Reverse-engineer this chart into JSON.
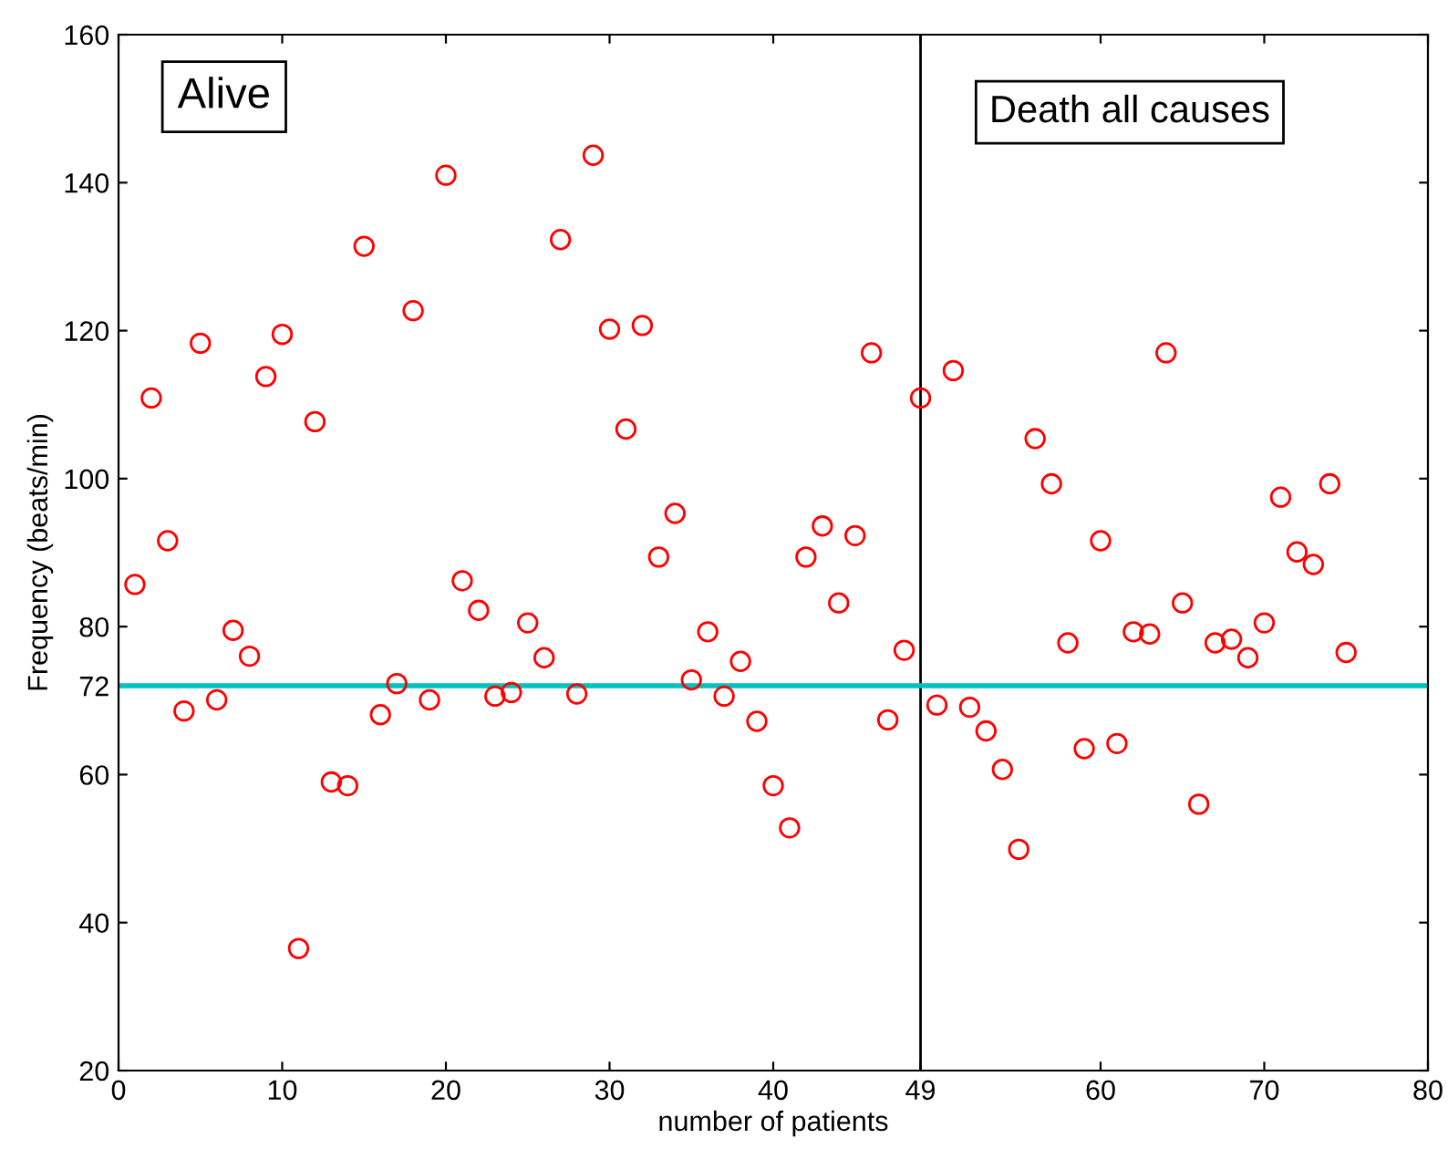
{
  "chart_data": {
    "type": "scatter",
    "xlabel": "number of patients",
    "ylabel": "Frequency (beats/min)",
    "x": [
      1,
      2,
      3,
      4,
      5,
      6,
      7,
      8,
      9,
      10,
      11,
      12,
      13,
      14,
      15,
      16,
      17,
      18,
      19,
      20,
      21,
      22,
      23,
      24,
      25,
      26,
      27,
      28,
      29,
      30,
      31,
      32,
      33,
      34,
      35,
      36,
      37,
      38,
      39,
      40,
      41,
      42,
      43,
      44,
      45,
      46,
      47,
      48,
      49,
      50,
      51,
      52,
      53,
      54,
      55,
      56,
      57,
      58,
      59,
      60,
      61,
      62,
      63,
      64,
      65,
      66,
      67,
      68,
      69,
      70,
      71,
      72,
      73,
      74,
      75
    ],
    "series": [
      {
        "color": "#ff0000",
        "values": [
          85.7,
          110.9,
          91.6,
          68.6,
          118.3,
          70.1,
          79.5,
          76.0,
          113.8,
          119.5,
          36.5,
          107.7,
          59.0,
          58.5,
          131.4,
          68.1,
          72.3,
          122.7,
          70.1,
          141.0,
          86.2,
          82.2,
          70.6,
          71.1,
          80.5,
          75.8,
          132.3,
          70.9,
          143.7,
          120.2,
          106.7,
          120.7,
          89.4,
          95.3,
          72.8,
          79.3,
          70.6,
          75.3,
          67.2,
          58.5,
          52.8,
          89.4,
          93.6,
          83.2,
          92.3,
          117.0,
          67.4,
          76.8,
          110.9,
          69.4,
          114.6,
          69.1,
          65.9,
          60.7,
          49.9,
          105.4,
          99.3,
          77.8,
          63.5,
          91.6,
          64.2,
          79.3,
          79.0,
          117.0,
          83.2,
          56.0,
          77.8,
          78.3,
          75.8,
          80.5,
          97.5,
          90.1,
          88.4,
          99.3,
          76.5
        ]
      }
    ],
    "xlim": [
      0,
      80
    ],
    "xticks": [
      0,
      10,
      20,
      30,
      40,
      49,
      60,
      70,
      80
    ],
    "ylim": [
      20,
      160
    ],
    "yticks": [
      20,
      40,
      60,
      72,
      80,
      100,
      120,
      140,
      160
    ],
    "ref_lines": [
      {
        "axis": "x",
        "value": 49,
        "color": "#000000"
      },
      {
        "axis": "y",
        "value": 72,
        "color": "#00c0c0"
      }
    ],
    "annotations": [
      "Alive",
      "Death all causes"
    ],
    "marker": "circle",
    "grid": false,
    "legend": false
  }
}
